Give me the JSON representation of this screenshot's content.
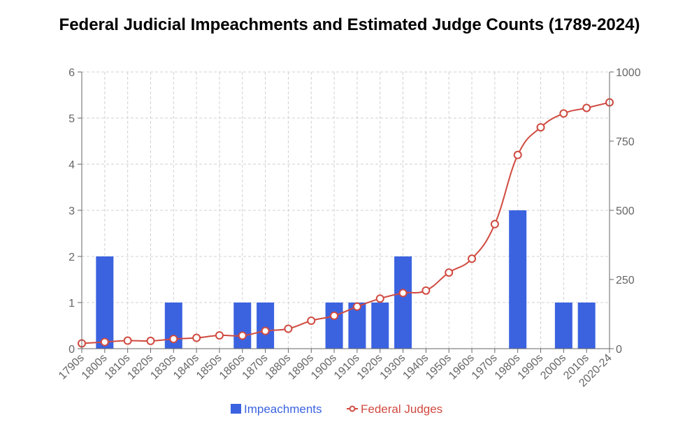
{
  "chart_data": {
    "type": "bar",
    "title": "Federal Judicial Impeachments and Estimated Judge Counts (1789-2024)",
    "categories": [
      "1790s",
      "1800s",
      "1810s",
      "1820s",
      "1830s",
      "1840s",
      "1850s",
      "1860s",
      "1870s",
      "1880s",
      "1890s",
      "1900s",
      "1910s",
      "1920s",
      "1930s",
      "1940s",
      "1950s",
      "1960s",
      "1970s",
      "1980s",
      "1990s",
      "2000s",
      "2010s",
      "2020-24"
    ],
    "series": [
      {
        "name": "Impeachments",
        "type": "bar",
        "axis": "left",
        "color": "#3b63e0",
        "values": [
          0,
          2,
          0,
          0,
          1,
          0,
          0,
          1,
          1,
          0,
          0,
          1,
          1,
          1,
          2,
          0,
          0,
          0,
          0,
          3,
          0,
          1,
          1,
          0
        ]
      },
      {
        "name": "Federal Judges",
        "type": "line",
        "axis": "right",
        "color": "#d04a40",
        "values": [
          19,
          24,
          29,
          28,
          35,
          39,
          48,
          47,
          64,
          72,
          101,
          119,
          152,
          181,
          201,
          210,
          275,
          325,
          450,
          700,
          800,
          850,
          870,
          890
        ]
      }
    ],
    "y_left": {
      "min": 0,
      "max": 6,
      "ticks": [
        0,
        1,
        2,
        3,
        4,
        5,
        6
      ]
    },
    "y_right": {
      "min": 0,
      "max": 1000,
      "ticks": [
        0,
        250,
        500,
        750,
        1000
      ]
    },
    "grid": true,
    "legend_position": "bottom"
  }
}
